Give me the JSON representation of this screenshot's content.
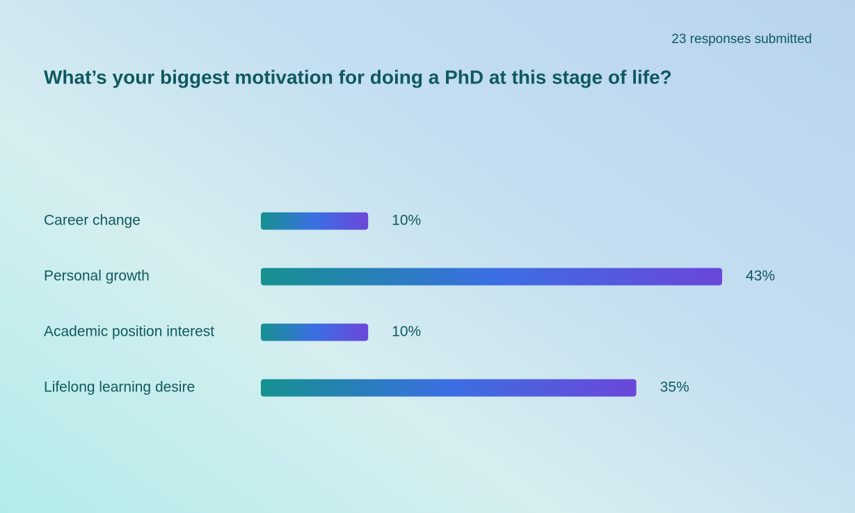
{
  "chart_data": {
    "type": "bar",
    "orientation": "horizontal",
    "title": "What’s your biggest motivation for doing a PhD at this stage of life?",
    "subtitle": "23 responses submitted",
    "categories": [
      "Career change",
      "Personal growth",
      "Academic position interest",
      "Lifelong learning desire"
    ],
    "values": [
      10,
      43,
      10,
      35
    ],
    "value_labels": [
      "10%",
      "43%",
      "10%",
      "35%"
    ],
    "colors": [
      "#15918f",
      "#3b6fe3",
      "#6b47d9"
    ]
  }
}
